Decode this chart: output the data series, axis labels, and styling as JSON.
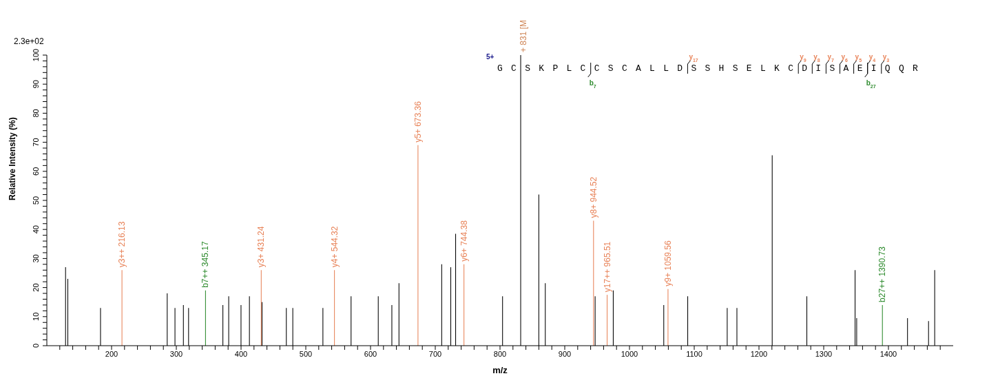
{
  "chart_data": {
    "type": "bar",
    "xlabel": "m/z",
    "ylabel": "Relative   Intensity (%)",
    "xlim": [
      100,
      1500
    ],
    "xticks": [
      {
        "value": 120,
        "label": null
      },
      {
        "value": 140,
        "label": null
      },
      {
        "value": 160,
        "label": null
      },
      {
        "value": 180,
        "label": null
      },
      200,
      {
        "value": 220,
        "label": null
      },
      {
        "value": 240,
        "label": null
      },
      {
        "value": 260,
        "label": null
      },
      {
        "value": 280,
        "label": null
      },
      300,
      {
        "value": 320,
        "label": null
      },
      {
        "value": 340,
        "label": null
      },
      {
        "value": 360,
        "label": null
      },
      {
        "value": 380,
        "label": null
      },
      400,
      {
        "value": 420,
        "label": null
      },
      {
        "value": 440,
        "label": null
      },
      {
        "value": 460,
        "label": null
      },
      {
        "value": 480,
        "label": null
      },
      500,
      {
        "value": 520,
        "label": null
      },
      {
        "value": 540,
        "label": null
      },
      {
        "value": 560,
        "label": null
      },
      {
        "value": 580,
        "label": null
      },
      600,
      {
        "value": 620,
        "label": null
      },
      {
        "value": 640,
        "label": null
      },
      {
        "value": 660,
        "label": null
      },
      {
        "value": 680,
        "label": null
      },
      700,
      {
        "value": 720,
        "label": null
      },
      {
        "value": 740,
        "label": null
      },
      {
        "value": 760,
        "label": null
      },
      {
        "value": 780,
        "label": null
      },
      800,
      {
        "value": 820,
        "label": null
      },
      {
        "value": 840,
        "label": null
      },
      {
        "value": 860,
        "label": null
      },
      {
        "value": 880,
        "label": null
      },
      900,
      {
        "value": 920,
        "label": null
      },
      {
        "value": 940,
        "label": null
      },
      {
        "value": 960,
        "label": null
      },
      {
        "value": 980,
        "label": null
      },
      1000,
      {
        "value": 1020,
        "label": null
      },
      {
        "value": 1040,
        "label": null
      },
      {
        "value": 1060,
        "label": null
      },
      {
        "value": 1080,
        "label": null
      },
      1100,
      {
        "value": 1120,
        "label": null
      },
      {
        "value": 1140,
        "label": null
      },
      {
        "value": 1160,
        "label": null
      },
      {
        "value": 1180,
        "label": null
      },
      1200,
      {
        "value": 1220,
        "label": null
      },
      {
        "value": 1240,
        "label": null
      },
      {
        "value": 1260,
        "label": null
      },
      {
        "value": 1280,
        "label": null
      },
      1300,
      {
        "value": 1320,
        "label": null
      },
      {
        "value": 1340,
        "label": null
      },
      {
        "value": 1360,
        "label": null
      },
      {
        "value": 1380,
        "label": null
      },
      1400,
      {
        "value": 1420,
        "label": null
      },
      {
        "value": 1440,
        "label": null
      },
      {
        "value": 1460,
        "label": null
      },
      {
        "value": 1480,
        "label": null
      }
    ],
    "ylim": [
      0,
      100
    ],
    "yticks": [
      0,
      {
        "value": 2,
        "label": null
      },
      {
        "value": 4,
        "label": null
      },
      {
        "value": 6,
        "label": null
      },
      {
        "value": 8,
        "label": null
      },
      10,
      {
        "value": 12,
        "label": null
      },
      {
        "value": 14,
        "label": null
      },
      {
        "value": 16,
        "label": null
      },
      {
        "value": 18,
        "label": null
      },
      20,
      {
        "value": 22,
        "label": null
      },
      {
        "value": 24,
        "label": null
      },
      {
        "value": 26,
        "label": null
      },
      {
        "value": 28,
        "label": null
      },
      30,
      {
        "value": 32,
        "label": null
      },
      {
        "value": 34,
        "label": null
      },
      {
        "value": 36,
        "label": null
      },
      {
        "value": 38,
        "label": null
      },
      40,
      {
        "value": 42,
        "label": null
      },
      {
        "value": 44,
        "label": null
      },
      {
        "value": 46,
        "label": null
      },
      {
        "value": 48,
        "label": null
      },
      50,
      {
        "value": 52,
        "label": null
      },
      {
        "value": 54,
        "label": null
      },
      {
        "value": 56,
        "label": null
      },
      {
        "value": 58,
        "label": null
      },
      60,
      {
        "value": 62,
        "label": null
      },
      {
        "value": 64,
        "label": null
      },
      {
        "value": 66,
        "label": null
      },
      {
        "value": 68,
        "label": null
      },
      70,
      {
        "value": 72,
        "label": null
      },
      {
        "value": 74,
        "label": null
      },
      {
        "value": 76,
        "label": null
      },
      {
        "value": 78,
        "label": null
      },
      80,
      {
        "value": 82,
        "label": null
      },
      {
        "value": 84,
        "label": null
      },
      {
        "value": 86,
        "label": null
      },
      {
        "value": 88,
        "label": null
      },
      90,
      {
        "value": 92,
        "label": null
      },
      {
        "value": 94,
        "label": null
      },
      {
        "value": 96,
        "label": null
      },
      {
        "value": 98,
        "label": null
      },
      100
    ],
    "series": [
      {
        "color": "#000000",
        "x": [
          129,
          132.5,
          183,
          286,
          298,
          311,
          319,
          372,
          381,
          400,
          413,
          432.5,
          470,
          480,
          526.5,
          570,
          612,
          633,
          644,
          710,
          724,
          731.5,
          804,
          832,
          860,
          870,
          947,
          975,
          1053,
          1090,
          1151,
          1166,
          1220.5,
          1274,
          1348.5,
          1351,
          1429.5,
          1462,
          1471.5
        ],
        "values": [
          27,
          23,
          13,
          18,
          13,
          14,
          13,
          14,
          17,
          14,
          17,
          15,
          13,
          13,
          13,
          17,
          17,
          14,
          21.5,
          28,
          27,
          38.5,
          17,
          100,
          52,
          21.5,
          17,
          19,
          14,
          17,
          13,
          13,
          65.5,
          17,
          26,
          9.5,
          9.5,
          8.5,
          26
        ]
      },
      {
        "color": "#e8845a",
        "x": [
          216.13,
          431.24,
          544.32,
          673.36,
          744.38,
          944.52,
          965.51,
          1059.56
        ],
        "values": [
          26,
          26,
          26,
          69,
          28,
          43,
          17.5,
          19.5
        ],
        "value_labels": [
          "y3++ 216.13",
          "y3+ 431.24",
          "y4+ 544.32",
          "y5+ 673.36",
          "y6+ 744.38",
          "y8+ 944.52",
          "y17++ 965.51",
          "y9+ 1059.56"
        ]
      },
      {
        "color": "#2e8b2e",
        "x": [
          345.17,
          1390.73
        ],
        "values": [
          19,
          14
        ],
        "value_labels": [
          "b7++ 345.17",
          "b27++ 1390.73"
        ]
      }
    ],
    "annotations": [
      "2.3e+02",
      "5+",
      "GCSKPLCCSCALLDSSHSELKCDISAEIQQR",
      "y$_{17}$",
      "y$_{9}$",
      "y$_{8}$",
      "y$_{7}$",
      "y$_{6}$",
      "y$_{5}$",
      "y$_{4}$",
      "y$_{3}$",
      "b$_{7}$",
      "b$_{27}$",
      {
        "text": "+ 831 [M",
        "x": 832,
        "y": 100
      }
    ]
  }
}
